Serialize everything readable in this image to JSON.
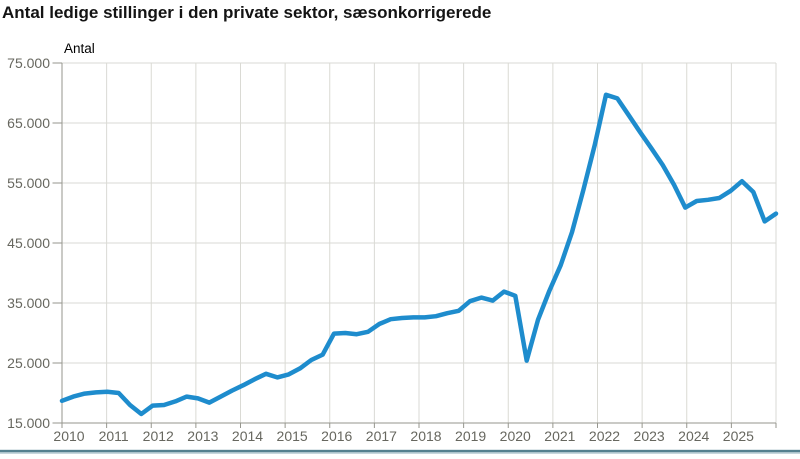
{
  "chart_data": {
    "type": "line",
    "title": "Antal ledige stillinger i den private sektor, sæsonkorrigerede",
    "ylabel": "Antal",
    "grid": true,
    "legend": "none",
    "ylim": [
      15000,
      75000
    ],
    "y_ticks": {
      "values": [
        15000,
        25000,
        35000,
        45000,
        55000,
        65000,
        75000
      ],
      "labels": [
        "15.000",
        "25.000",
        "35.000",
        "45.000",
        "55.000",
        "65.000",
        "75.000"
      ]
    },
    "x_tick_labels": [
      "2010",
      "2011",
      "2012",
      "2013",
      "2014",
      "2015",
      "2016",
      "2017",
      "2018",
      "2019",
      "2020",
      "2021",
      "2022",
      "2023",
      "2024",
      "2025"
    ],
    "series": [
      {
        "name": "Ledige stillinger i den private sektor, sæsonkorrigerede",
        "x": [
          "2010K1",
          "2010K2",
          "2010K3",
          "2010K4",
          "2011K1",
          "2011K2",
          "2011K3",
          "2011K4",
          "2012K1",
          "2012K2",
          "2012K3",
          "2012K4",
          "2013K1",
          "2013K2",
          "2013K3",
          "2013K4",
          "2014K1",
          "2014K2",
          "2014K3",
          "2014K4",
          "2015K1",
          "2015K2",
          "2015K3",
          "2015K4",
          "2016K1",
          "2016K2",
          "2016K3",
          "2016K4",
          "2017K1",
          "2017K2",
          "2017K3",
          "2017K4",
          "2018K1",
          "2018K2",
          "2018K3",
          "2018K4",
          "2019K1",
          "2019K2",
          "2019K3",
          "2019K4",
          "2020K1",
          "2020K2",
          "2020K3",
          "2020K4",
          "2021K1",
          "2021K2",
          "2021K3",
          "2021K4",
          "2022K1",
          "2022K2",
          "2022K3",
          "2022K4",
          "2023K1",
          "2023K2",
          "2023K3",
          "2023K4",
          "2024K1",
          "2024K2",
          "2024K3",
          "2024K4",
          "2025K1",
          "2025K2",
          "2025K3",
          "2025K4"
        ],
        "values": [
          18700,
          19400,
          19900,
          20100,
          20200,
          20000,
          18000,
          16500,
          17900,
          18000,
          18600,
          19400,
          19100,
          18400,
          19400,
          20400,
          21300,
          22300,
          23200,
          22600,
          23100,
          24100,
          25500,
          26400,
          29900,
          30000,
          29800,
          30200,
          31500,
          32300,
          32500,
          32600,
          32600,
          32800,
          33300,
          33700,
          35300,
          35900,
          35400,
          36900,
          36200,
          25400,
          32200,
          37000,
          41300,
          46800,
          53800,
          61300,
          69700,
          69100,
          66300,
          63500,
          60800,
          58000,
          54700,
          50900,
          52000,
          52200,
          52500,
          53700,
          55300,
          53500,
          48600,
          49900
        ]
      }
    ]
  },
  "colors": {
    "line": "#1e8ccd",
    "grid": "#dadad4",
    "axis": "#96968e",
    "tick": "#96968e",
    "text": "#67675f",
    "title": "#141414",
    "footer_bar": "#55808f"
  }
}
